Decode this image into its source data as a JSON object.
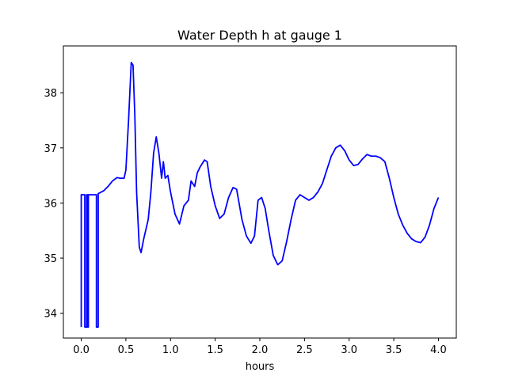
{
  "chart_data": {
    "type": "line",
    "title": "Water Depth h at gauge 1",
    "xlabel": "hours",
    "ylabel": "",
    "xlim": [
      -0.2,
      4.2
    ],
    "ylim": [
      33.55,
      38.85
    ],
    "xticks": [
      0.0,
      0.5,
      1.0,
      1.5,
      2.0,
      2.5,
      3.0,
      3.5,
      4.0
    ],
    "xtick_labels": [
      "0.0",
      "0.5",
      "1.0",
      "1.5",
      "2.0",
      "2.5",
      "3.0",
      "3.5",
      "4.0"
    ],
    "yticks": [
      34,
      35,
      36,
      37,
      38
    ],
    "ytick_labels": [
      "34",
      "35",
      "36",
      "37",
      "38"
    ],
    "grid": false,
    "series": [
      {
        "color": "#0000ff",
        "points": [
          [
            0.0,
            33.75
          ],
          [
            0.0,
            36.15
          ],
          [
            0.04,
            36.15
          ],
          [
            0.04,
            33.75
          ],
          [
            0.06,
            33.75
          ],
          [
            0.06,
            36.15
          ],
          [
            0.07,
            36.15
          ],
          [
            0.07,
            33.75
          ],
          [
            0.08,
            33.75
          ],
          [
            0.08,
            36.15
          ],
          [
            0.17,
            36.15
          ],
          [
            0.17,
            33.75
          ],
          [
            0.19,
            33.75
          ],
          [
            0.19,
            36.17
          ],
          [
            0.25,
            36.22
          ],
          [
            0.3,
            36.3
          ],
          [
            0.35,
            36.4
          ],
          [
            0.4,
            36.46
          ],
          [
            0.44,
            36.45
          ],
          [
            0.48,
            36.45
          ],
          [
            0.5,
            36.6
          ],
          [
            0.53,
            37.5
          ],
          [
            0.56,
            38.55
          ],
          [
            0.58,
            38.5
          ],
          [
            0.6,
            37.6
          ],
          [
            0.62,
            36.2
          ],
          [
            0.65,
            35.2
          ],
          [
            0.67,
            35.1
          ],
          [
            0.7,
            35.35
          ],
          [
            0.75,
            35.7
          ],
          [
            0.78,
            36.2
          ],
          [
            0.81,
            36.9
          ],
          [
            0.84,
            37.2
          ],
          [
            0.87,
            36.9
          ],
          [
            0.9,
            36.45
          ],
          [
            0.92,
            36.75
          ],
          [
            0.94,
            36.45
          ],
          [
            0.97,
            36.5
          ],
          [
            1.0,
            36.2
          ],
          [
            1.05,
            35.8
          ],
          [
            1.1,
            35.62
          ],
          [
            1.15,
            35.95
          ],
          [
            1.2,
            36.05
          ],
          [
            1.23,
            36.4
          ],
          [
            1.27,
            36.3
          ],
          [
            1.3,
            36.55
          ],
          [
            1.33,
            36.65
          ],
          [
            1.38,
            36.78
          ],
          [
            1.41,
            36.75
          ],
          [
            1.45,
            36.3
          ],
          [
            1.5,
            35.95
          ],
          [
            1.55,
            35.72
          ],
          [
            1.6,
            35.8
          ],
          [
            1.65,
            36.1
          ],
          [
            1.7,
            36.28
          ],
          [
            1.74,
            36.25
          ],
          [
            1.8,
            35.7
          ],
          [
            1.85,
            35.4
          ],
          [
            1.9,
            35.27
          ],
          [
            1.94,
            35.4
          ],
          [
            1.98,
            36.05
          ],
          [
            2.02,
            36.1
          ],
          [
            2.06,
            35.9
          ],
          [
            2.1,
            35.5
          ],
          [
            2.15,
            35.05
          ],
          [
            2.2,
            34.88
          ],
          [
            2.25,
            34.95
          ],
          [
            2.3,
            35.3
          ],
          [
            2.35,
            35.7
          ],
          [
            2.4,
            36.05
          ],
          [
            2.45,
            36.15
          ],
          [
            2.5,
            36.1
          ],
          [
            2.55,
            36.05
          ],
          [
            2.6,
            36.1
          ],
          [
            2.65,
            36.2
          ],
          [
            2.7,
            36.35
          ],
          [
            2.75,
            36.6
          ],
          [
            2.8,
            36.85
          ],
          [
            2.85,
            37.0
          ],
          [
            2.9,
            37.05
          ],
          [
            2.95,
            36.95
          ],
          [
            3.0,
            36.78
          ],
          [
            3.05,
            36.68
          ],
          [
            3.1,
            36.7
          ],
          [
            3.15,
            36.8
          ],
          [
            3.2,
            36.88
          ],
          [
            3.25,
            36.85
          ],
          [
            3.3,
            36.85
          ],
          [
            3.35,
            36.82
          ],
          [
            3.4,
            36.75
          ],
          [
            3.45,
            36.45
          ],
          [
            3.5,
            36.1
          ],
          [
            3.55,
            35.8
          ],
          [
            3.6,
            35.6
          ],
          [
            3.65,
            35.45
          ],
          [
            3.7,
            35.35
          ],
          [
            3.75,
            35.3
          ],
          [
            3.8,
            35.28
          ],
          [
            3.85,
            35.38
          ],
          [
            3.9,
            35.6
          ],
          [
            3.95,
            35.9
          ],
          [
            4.0,
            36.1
          ]
        ]
      }
    ]
  }
}
